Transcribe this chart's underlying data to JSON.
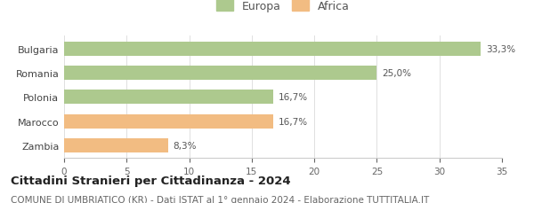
{
  "categories": [
    "Bulgaria",
    "Romania",
    "Polonia",
    "Marocco",
    "Zambia"
  ],
  "values": [
    33.3,
    25.0,
    16.7,
    16.7,
    8.3
  ],
  "labels": [
    "33,3%",
    "25,0%",
    "16,7%",
    "16,7%",
    "8,3%"
  ],
  "colors": [
    "#adc98e",
    "#adc98e",
    "#adc98e",
    "#f2bc82",
    "#f2bc82"
  ],
  "legend": [
    {
      "label": "Europa",
      "color": "#adc98e"
    },
    {
      "label": "Africa",
      "color": "#f2bc82"
    }
  ],
  "xlim": [
    0,
    35
  ],
  "xticks": [
    0,
    5,
    10,
    15,
    20,
    25,
    30,
    35
  ],
  "title": "Cittadini Stranieri per Cittadinanza - 2024",
  "subtitle": "COMUNE DI UMBRIATICO (KR) - Dati ISTAT al 1° gennaio 2024 - Elaborazione TUTTITALIA.IT",
  "title_fontsize": 9.5,
  "subtitle_fontsize": 7.5,
  "bar_height": 0.58,
  "background_color": "#ffffff",
  "label_fontsize": 7.5,
  "tick_fontsize": 7.5,
  "category_fontsize": 8,
  "legend_fontsize": 9
}
